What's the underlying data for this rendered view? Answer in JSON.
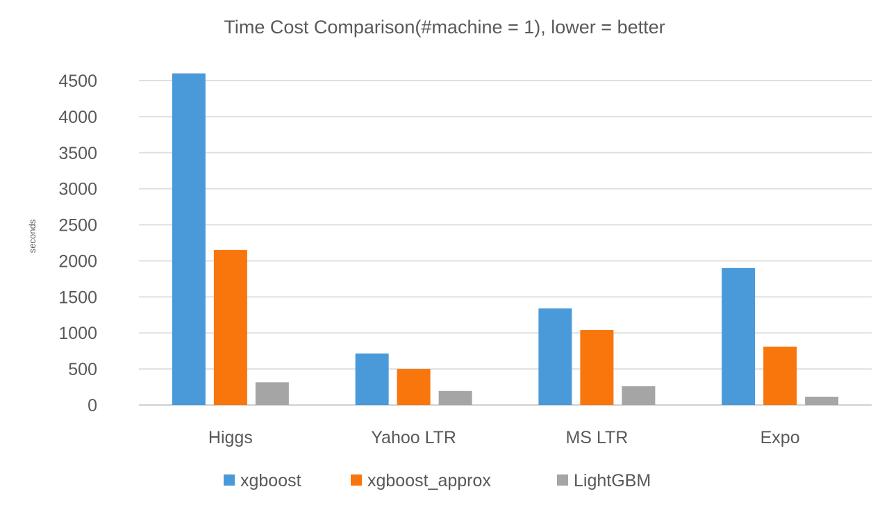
{
  "chart_data": {
    "type": "bar",
    "title": "Time Cost Comparison(#machine = 1), lower = better",
    "xlabel": "",
    "ylabel": "seconds",
    "ylim": [
      0,
      4500
    ],
    "yticks": [
      0,
      500,
      1000,
      1500,
      2000,
      2500,
      3000,
      3500,
      4000,
      4500
    ],
    "grid": true,
    "legend_position": "bottom",
    "categories": [
      "Higgs",
      "Yahoo LTR",
      "MS LTR",
      "Expo"
    ],
    "series": [
      {
        "name": "xgboost",
        "color": "#4a9ad9",
        "values": [
          4600,
          715,
          1340,
          1900
        ]
      },
      {
        "name": "xgboost_approx",
        "color": "#f8760c",
        "values": [
          2150,
          500,
          1040,
          810
        ]
      },
      {
        "name": "LightGBM",
        "color": "#a5a5a5",
        "values": [
          315,
          195,
          260,
          115
        ]
      }
    ]
  }
}
